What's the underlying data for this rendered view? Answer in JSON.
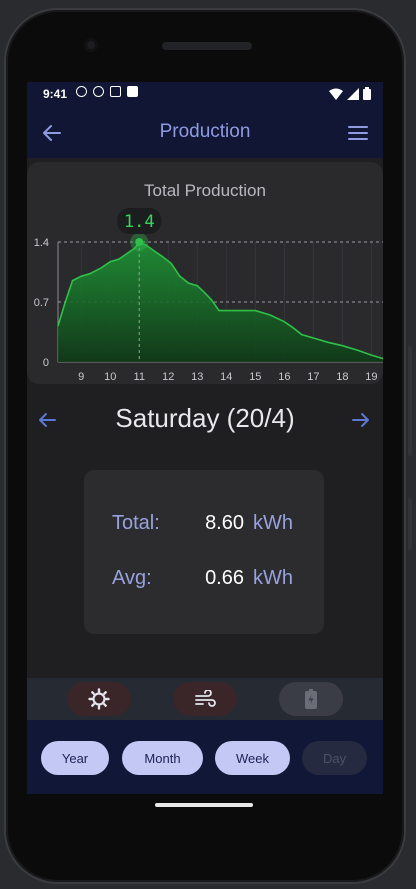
{
  "status_bar": {
    "time": "9:41",
    "icons": [
      "info-icon",
      "shield-icon",
      "a-icon",
      "sd-card-icon",
      "wifi-icon",
      "signal-icon",
      "battery-icon"
    ]
  },
  "app_bar": {
    "title": "Production"
  },
  "chart_data": {
    "type": "area",
    "title": "Total Production",
    "xlabel": "",
    "ylabel": "",
    "x_ticks": [
      "9",
      "10",
      "11",
      "12",
      "13",
      "14",
      "15",
      "16",
      "17",
      "18",
      "19"
    ],
    "y_ticks": [
      "0",
      "0.7",
      "1.4"
    ],
    "xlim": [
      8.2,
      19.4
    ],
    "ylim": [
      0,
      1.4
    ],
    "grid": "dashed at 0.7 and 1.4, faint vertical lines",
    "color": "#2fc04a",
    "x": [
      8.2,
      8.45,
      8.7,
      9.0,
      9.3,
      9.7,
      10.0,
      10.3,
      10.6,
      10.85,
      11.0,
      11.25,
      11.5,
      11.8,
      12.1,
      12.4,
      12.7,
      13.0,
      13.25,
      13.5,
      13.75,
      14.0,
      14.5,
      15.0,
      15.5,
      16.0,
      16.3,
      16.6,
      17.0,
      17.5,
      18.0,
      18.5,
      19.0,
      19.4
    ],
    "y": [
      0.42,
      0.7,
      0.95,
      1.0,
      1.03,
      1.1,
      1.17,
      1.2,
      1.27,
      1.33,
      1.4,
      1.36,
      1.3,
      1.23,
      1.15,
      1.0,
      0.92,
      0.89,
      0.81,
      0.72,
      0.6,
      0.6,
      0.6,
      0.6,
      0.55,
      0.47,
      0.4,
      0.32,
      0.28,
      0.23,
      0.19,
      0.14,
      0.08,
      0.04
    ],
    "highlight": {
      "x": 11.0,
      "y": 1.4,
      "label": "1.4"
    }
  },
  "day_nav": {
    "label": "Saturday (20/4)"
  },
  "stats": {
    "total": {
      "label": "Total:",
      "value": "8.60",
      "unit": "kWh"
    },
    "avg": {
      "label": "Avg:",
      "value": "0.66",
      "unit": "kWh"
    }
  },
  "sources": [
    {
      "icon": "sun-icon",
      "bg": "#3a2528",
      "active": true
    },
    {
      "icon": "wind-icon",
      "bg": "#3a2528",
      "active": true
    },
    {
      "icon": "battery-icon",
      "bg": "#3a3d46",
      "active": false
    }
  ],
  "period_buttons": [
    {
      "label": "Year",
      "enabled": true
    },
    {
      "label": "Month",
      "enabled": true
    },
    {
      "label": "Week",
      "enabled": true
    },
    {
      "label": "Day",
      "enabled": false
    }
  ]
}
